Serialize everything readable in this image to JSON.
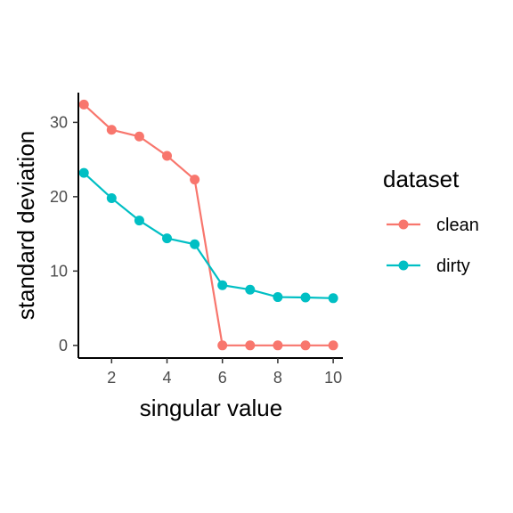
{
  "chart_data": {
    "type": "line",
    "title": "",
    "xlabel": "singular value",
    "ylabel": "standard deviation",
    "x": [
      1,
      2,
      3,
      4,
      5,
      6,
      7,
      8,
      9,
      10
    ],
    "xlim": [
      0.8,
      10.35
    ],
    "ylim": [
      -1.7,
      34
    ],
    "xticks": [
      2,
      4,
      6,
      8,
      10
    ],
    "yticks": [
      0,
      10,
      20,
      30
    ],
    "grid": false,
    "legend": {
      "title": "dataset",
      "placement": "right"
    },
    "series": [
      {
        "name": "clean",
        "color": "#F8766D",
        "values": [
          32.4,
          29.0,
          28.1,
          25.5,
          22.3,
          0.0,
          0.0,
          0.0,
          0.0,
          0.0
        ]
      },
      {
        "name": "dirty",
        "color": "#00BFC4",
        "values": [
          23.2,
          19.8,
          16.8,
          14.4,
          13.6,
          8.1,
          7.5,
          6.5,
          6.45,
          6.35
        ]
      }
    ]
  }
}
